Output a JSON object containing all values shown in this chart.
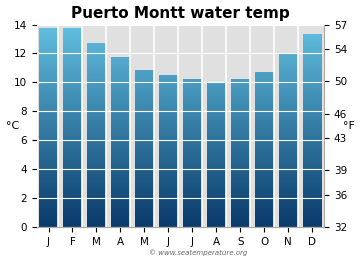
{
  "title": "Puerto Montt water temp",
  "months": [
    "J",
    "F",
    "M",
    "A",
    "M",
    "J",
    "J",
    "A",
    "S",
    "O",
    "N",
    "D"
  ],
  "temps_c": [
    13.7,
    13.7,
    12.7,
    11.7,
    10.8,
    10.5,
    10.2,
    10.0,
    10.2,
    10.7,
    12.0,
    13.3
  ],
  "ylim_c": [
    0,
    14
  ],
  "ylim_f": [
    32,
    57
  ],
  "yticks_c": [
    0,
    2,
    4,
    6,
    8,
    10,
    12,
    14
  ],
  "yticks_f": [
    32,
    36,
    39,
    43,
    46,
    50,
    54,
    57
  ],
  "ylabel_left": "°C",
  "ylabel_right": "°F",
  "bar_color_top": "#62c0e0",
  "bar_color_bottom": "#0a3a6b",
  "bg_color": "#e0e0e0",
  "fig_bg_color": "#ffffff",
  "watermark": "© www.seatemperature.org",
  "title_fontsize": 11,
  "tick_fontsize": 7.5,
  "label_fontsize": 8,
  "bar_width": 0.78,
  "n_gradient_steps": 256
}
